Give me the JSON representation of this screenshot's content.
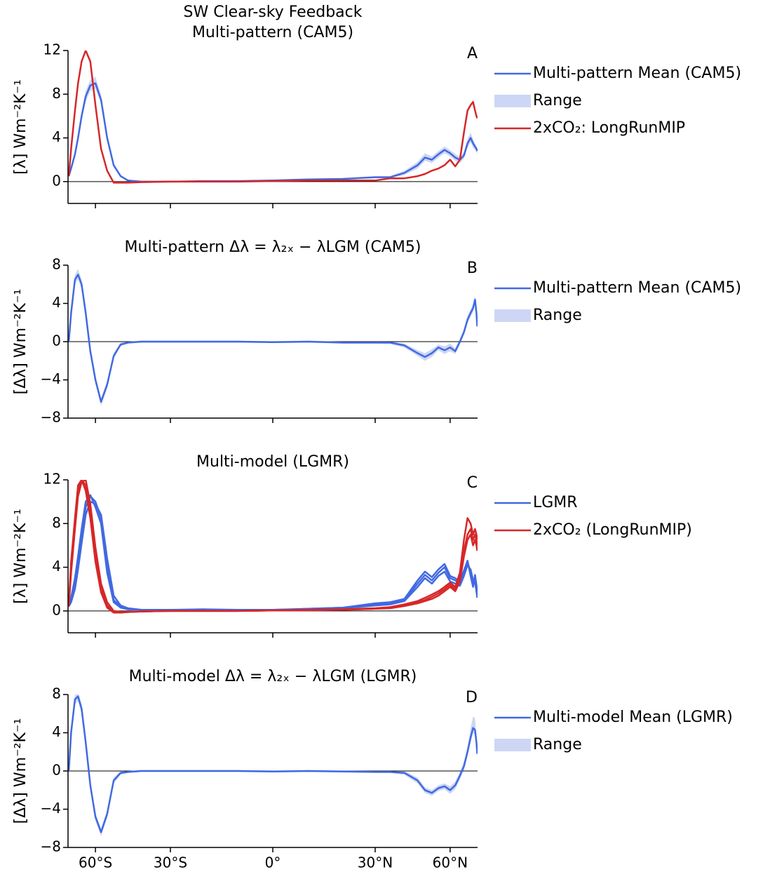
{
  "chart_data": [
    {
      "type": "line",
      "title": "SW Clear-sky Feedback",
      "subtitle": "Multi-pattern (CAM5)",
      "panel_label": "A",
      "ylabel": "[λ] Wm⁻²K⁻¹",
      "xscale": "sine",
      "xlim": [
        -90,
        90
      ],
      "xticks": [
        -60,
        -30,
        0,
        30,
        60
      ],
      "ylim": [
        -2,
        12
      ],
      "yticks": [
        0,
        4,
        8,
        12
      ],
      "zero_line": true,
      "x": [
        -85,
        -80,
        -75,
        -72,
        -69,
        -66,
        -63,
        -60,
        -57,
        -54,
        -51,
        -48,
        -45,
        -40,
        -30,
        -20,
        -10,
        0,
        10,
        20,
        30,
        35,
        40,
        45,
        48,
        51,
        54,
        57,
        60,
        63,
        66,
        69,
        72,
        75,
        78,
        81,
        84,
        87
      ],
      "series": [
        {
          "name": "Multi-pattern Mean (CAM5)",
          "color": "#4169e1",
          "values": [
            0.5,
            1.2,
            2.5,
            4.0,
            6.0,
            7.8,
            8.8,
            9.0,
            7.5,
            4.0,
            1.5,
            0.5,
            0.1,
            0,
            0,
            0.05,
            0.05,
            0.1,
            0.2,
            0.25,
            0.4,
            0.4,
            0.8,
            1.5,
            2.2,
            2.0,
            2.5,
            2.9,
            2.6,
            2.2,
            2.0,
            2.4,
            3.5,
            4.0,
            3.5,
            3.2,
            3.0,
            2.8
          ]
        },
        {
          "name": "Range",
          "color": "#cdd7f5",
          "lower": [
            0.4,
            1.0,
            2.2,
            3.7,
            5.6,
            7.3,
            8.3,
            8.5,
            7.1,
            3.7,
            1.3,
            0.4,
            0.05,
            -0.05,
            -0.05,
            0,
            0,
            0.05,
            0.15,
            0.2,
            0.3,
            0.3,
            0.6,
            1.2,
            1.9,
            1.7,
            2.2,
            2.6,
            2.3,
            1.9,
            1.7,
            2.1,
            3.1,
            3.6,
            3.1,
            2.9,
            2.7,
            2.5
          ],
          "upper": [
            0.6,
            1.4,
            2.8,
            4.3,
            6.4,
            8.3,
            9.3,
            9.6,
            7.9,
            4.3,
            1.7,
            0.6,
            0.15,
            0.05,
            0.05,
            0.1,
            0.1,
            0.15,
            0.25,
            0.3,
            0.5,
            0.5,
            1.0,
            1.8,
            2.6,
            2.3,
            2.8,
            3.2,
            2.9,
            2.5,
            2.3,
            2.7,
            3.9,
            4.5,
            3.9,
            3.5,
            3.3,
            3.1
          ]
        },
        {
          "name": "2xCO₂: LongRunMIP",
          "color": "#d62728",
          "values": [
            0.5,
            3,
            6.5,
            9,
            11,
            12,
            11,
            7,
            3,
            1,
            -0.1,
            -0.1,
            -0.1,
            -0.05,
            0,
            0,
            0,
            0.05,
            0.1,
            0.1,
            0.1,
            0.3,
            0.3,
            0.5,
            0.7,
            1.0,
            1.2,
            1.5,
            2.0,
            1.4,
            2.0,
            4.5,
            6.5,
            7.0,
            7.3,
            6.5,
            6.0,
            5.8
          ]
        }
      ]
    },
    {
      "type": "line",
      "title": "Multi-pattern Δλ = λ₂ₓ − λLGM (CAM5)",
      "panel_label": "B",
      "ylabel": "[Δλ] Wm⁻²K⁻¹",
      "xscale": "sine",
      "xlim": [
        -90,
        90
      ],
      "xticks": [
        -60,
        -30,
        0,
        30,
        60
      ],
      "ylim": [
        -8,
        8
      ],
      "yticks": [
        {
          "value": -8,
          "label": "−8"
        },
        {
          "value": -4,
          "label": "−4"
        },
        0,
        4,
        8
      ],
      "zero_line": true,
      "x": [
        -85,
        -80,
        -75,
        -72,
        -69,
        -66,
        -63,
        -60,
        -57,
        -54,
        -51,
        -48,
        -45,
        -40,
        -30,
        -20,
        -10,
        0,
        10,
        20,
        30,
        35,
        40,
        45,
        48,
        51,
        54,
        57,
        60,
        63,
        66,
        69,
        72,
        75,
        78,
        81,
        84,
        87
      ],
      "series": [
        {
          "name": "Multi-pattern Mean (CAM5)",
          "color": "#4169e1",
          "values": [
            0,
            3,
            6.5,
            7,
            6,
            3,
            -1,
            -4,
            -6.3,
            -4.5,
            -1.5,
            -0.3,
            -0.1,
            0,
            0,
            0,
            0,
            -0.05,
            0,
            -0.1,
            -0.1,
            -0.1,
            -0.4,
            -1.2,
            -1.6,
            -1.2,
            -0.6,
            -0.9,
            -0.6,
            -1.0,
            0,
            1.0,
            2.3,
            3.0,
            3.5,
            4.4,
            3.0,
            1.6
          ]
        },
        {
          "name": "Range",
          "color": "#cdd7f5",
          "lower": [
            -0.2,
            2.6,
            6.0,
            6.5,
            5.5,
            2.6,
            -1.4,
            -4.4,
            -6.7,
            -4.9,
            -1.8,
            -0.5,
            -0.2,
            -0.1,
            -0.1,
            -0.1,
            -0.1,
            -0.15,
            -0.1,
            -0.2,
            -0.2,
            -0.25,
            -0.6,
            -1.5,
            -2.0,
            -1.6,
            -0.9,
            -1.3,
            -1.0,
            -1.3,
            -0.3,
            0.7,
            1.9,
            2.6,
            3.1,
            4.0,
            2.6,
            1.3
          ],
          "upper": [
            0.2,
            3.4,
            7.0,
            7.6,
            6.5,
            3.4,
            -0.6,
            -3.6,
            -5.9,
            -4.1,
            -1.2,
            -0.1,
            0,
            0.1,
            0.1,
            0.1,
            0.1,
            0.05,
            0.1,
            0,
            0,
            0.05,
            -0.2,
            -0.9,
            -1.2,
            -0.8,
            -0.3,
            -0.5,
            -0.2,
            -0.7,
            0.3,
            1.3,
            2.7,
            3.4,
            3.9,
            4.8,
            3.4,
            1.9
          ]
        }
      ]
    },
    {
      "type": "line",
      "title": "Multi-model (LGMR)",
      "panel_label": "C",
      "ylabel": "[λ] Wm⁻²K⁻¹",
      "xscale": "sine",
      "xlim": [
        -90,
        90
      ],
      "xticks": [
        -60,
        -30,
        0,
        30,
        60
      ],
      "ylim": [
        -2,
        12
      ],
      "yticks": [
        0,
        4,
        8,
        12
      ],
      "zero_line": true,
      "x": [
        -85,
        -80,
        -75,
        -72,
        -69,
        -66,
        -63,
        -60,
        -57,
        -54,
        -51,
        -48,
        -45,
        -40,
        -30,
        -20,
        -10,
        0,
        10,
        20,
        30,
        35,
        40,
        45,
        48,
        51,
        54,
        57,
        60,
        63,
        66,
        69,
        72,
        75,
        78,
        81,
        84,
        87
      ],
      "series": [
        {
          "name": "LGMR",
          "color": "#4169e1",
          "members": [
            [
              0.5,
              1,
              2.5,
              4.5,
              7,
              9.5,
              10.5,
              10,
              8.5,
              4,
              1,
              0.4,
              0.2,
              0.1,
              0.1,
              0.15,
              0.1,
              0.1,
              0.2,
              0.3,
              0.6,
              0.7,
              1.0,
              2.5,
              3.3,
              2.8,
              3.5,
              4.0,
              3.0,
              2.8,
              2.5,
              3.5,
              4.5,
              3.5,
              2.5,
              3.0,
              2.0,
              1.5
            ],
            [
              0.4,
              0.8,
              2.0,
              3.8,
              6.2,
              8.8,
              10.0,
              9.8,
              8.8,
              4.8,
              1.4,
              0.5,
              0.25,
              0.1,
              0.05,
              0.1,
              0.1,
              0.1,
              0.15,
              0.25,
              0.5,
              0.6,
              0.9,
              2.2,
              3.0,
              2.5,
              3.2,
              3.6,
              2.7,
              2.5,
              2.3,
              3.2,
              4.2,
              3.8,
              2.8,
              2.6,
              1.8,
              1.2
            ],
            [
              0.6,
              1.2,
              3.0,
              5.0,
              7.5,
              10.0,
              10.6,
              9.5,
              8.0,
              3.5,
              0.8,
              0.3,
              0.15,
              0.1,
              0.1,
              0.1,
              0.1,
              0.05,
              0.2,
              0.3,
              0.7,
              0.8,
              1.1,
              2.8,
              3.6,
              3.1,
              3.8,
              4.3,
              3.2,
              3.0,
              2.7,
              3.7,
              4.6,
              3.2,
              2.2,
              3.3,
              2.4,
              1.8
            ]
          ]
        },
        {
          "name": "2xCO₂ (LongRunMIP)",
          "color": "#d62728",
          "members": [
            [
              0.5,
              4,
              8,
              11,
              12,
              11.5,
              9,
              5,
              2,
              0.5,
              -0.1,
              -0.15,
              -0.1,
              -0.05,
              0,
              0,
              0,
              0.05,
              0.1,
              0.1,
              0.2,
              0.3,
              0.5,
              0.8,
              1.0,
              1.3,
              1.6,
              2.0,
              2.4,
              2.0,
              3.0,
              5.5,
              7.0,
              7.5,
              6.5,
              7.0,
              6.5,
              6.0
            ],
            [
              0.4,
              3.5,
              7.5,
              10.5,
              11.8,
              12,
              9.8,
              5.8,
              2.5,
              0.8,
              0,
              -0.1,
              -0.1,
              -0.05,
              0,
              0,
              0,
              0.05,
              0.1,
              0.15,
              0.25,
              0.35,
              0.6,
              0.9,
              1.2,
              1.5,
              1.8,
              2.2,
              2.6,
              2.2,
              3.5,
              6.5,
              8.5,
              8.0,
              7.0,
              7.5,
              7.0,
              6.5
            ],
            [
              0.6,
              4.5,
              8.5,
              11.5,
              12,
              11,
              8.5,
              4.5,
              1.7,
              0.3,
              -0.15,
              -0.15,
              -0.1,
              -0.05,
              0,
              0,
              0,
              0.05,
              0.05,
              0.1,
              0.2,
              0.25,
              0.45,
              0.7,
              0.9,
              1.1,
              1.4,
              1.8,
              2.2,
              1.8,
              2.7,
              5.0,
              6.5,
              7.0,
              6.0,
              6.5,
              6.0,
              5.5
            ]
          ]
        }
      ]
    },
    {
      "type": "line",
      "title": "Multi-model Δλ = λ₂ₓ − λLGM (LGMR)",
      "panel_label": "D",
      "ylabel": "[Δλ] Wm⁻²K⁻¹",
      "xscale": "sine",
      "xlim": [
        -90,
        90
      ],
      "xticks": [
        {
          "value": -60,
          "label": "60°S"
        },
        {
          "value": -30,
          "label": "30°S"
        },
        {
          "value": 0,
          "label": "0°"
        },
        {
          "value": 30,
          "label": "30°N"
        },
        {
          "value": 60,
          "label": "60°N"
        }
      ],
      "ylim": [
        -8,
        8
      ],
      "yticks": [
        {
          "value": -8,
          "label": "−8"
        },
        {
          "value": -4,
          "label": "−4"
        },
        0,
        4,
        8
      ],
      "zero_line": true,
      "x": [
        -85,
        -80,
        -75,
        -72,
        -69,
        -66,
        -63,
        -60,
        -57,
        -54,
        -51,
        -48,
        -45,
        -40,
        -30,
        -20,
        -10,
        0,
        10,
        20,
        30,
        35,
        40,
        45,
        48,
        51,
        54,
        57,
        60,
        63,
        66,
        69,
        72,
        75,
        78,
        81,
        84,
        87
      ],
      "series": [
        {
          "name": "Multi-model Mean (LGMR)",
          "color": "#4169e1",
          "values": [
            0,
            4,
            7.5,
            7.8,
            6.5,
            3,
            -1.5,
            -4.8,
            -6.4,
            -4.5,
            -1,
            -0.2,
            -0.1,
            0,
            0,
            0,
            0,
            -0.05,
            0,
            -0.05,
            -0.1,
            -0.1,
            -0.2,
            -1.0,
            -2.0,
            -2.3,
            -1.8,
            -1.6,
            -2.0,
            -1.5,
            -0.5,
            0.5,
            2.0,
            3.5,
            4.5,
            4.3,
            3.0,
            1.8
          ]
        },
        {
          "name": "Range",
          "color": "#cdd7f5",
          "lower": [
            -0.2,
            3.6,
            7.0,
            7.3,
            6.0,
            2.6,
            -1.9,
            -5.2,
            -6.8,
            -4.9,
            -1.3,
            -0.4,
            -0.2,
            -0.1,
            -0.1,
            -0.1,
            -0.1,
            -0.15,
            -0.1,
            -0.15,
            -0.2,
            -0.2,
            -0.4,
            -1.3,
            -2.3,
            -2.6,
            -2.1,
            -1.9,
            -2.4,
            -1.9,
            -0.9,
            0.1,
            1.6,
            3.0,
            4.0,
            3.8,
            2.6,
            1.5
          ],
          "upper": [
            0.2,
            4.4,
            8.0,
            8.3,
            7.0,
            3.4,
            -1.1,
            -4.4,
            -6.0,
            -4.1,
            -0.7,
            0,
            0,
            0.1,
            0.1,
            0.1,
            0.1,
            0.05,
            0.1,
            0.05,
            0,
            0,
            0,
            -0.7,
            -1.7,
            -2.0,
            -1.5,
            -1.3,
            -1.6,
            -1.1,
            -0.1,
            1.0,
            2.6,
            4.5,
            5.7,
            5.5,
            3.6,
            2.2
          ]
        }
      ]
    }
  ]
}
